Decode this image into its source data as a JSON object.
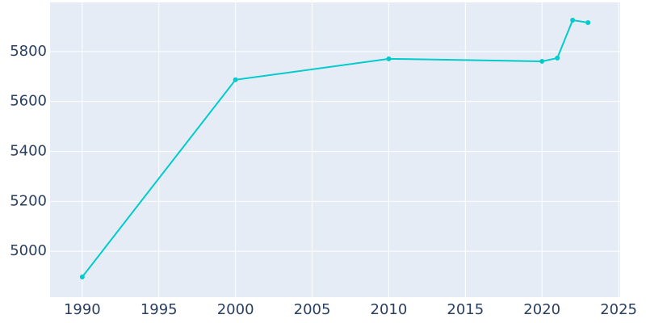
{
  "chart_data": {
    "type": "line",
    "x": [
      1990,
      2000,
      2010,
      2020,
      2021,
      2022,
      2023
    ],
    "series": [
      {
        "color": "#00cccc",
        "values": [
          4897,
          5687,
          5771,
          5761,
          5774,
          5926,
          5916
        ]
      }
    ],
    "xlim": [
      1987.9,
      2025.1
    ],
    "xticks": [
      1990,
      1995,
      2000,
      2005,
      2010,
      2015,
      2020,
      2025
    ],
    "ylim": [
      4816,
      5997
    ],
    "yticks": [
      5000,
      5200,
      5400,
      5600,
      5800
    ],
    "grid": true
  }
}
